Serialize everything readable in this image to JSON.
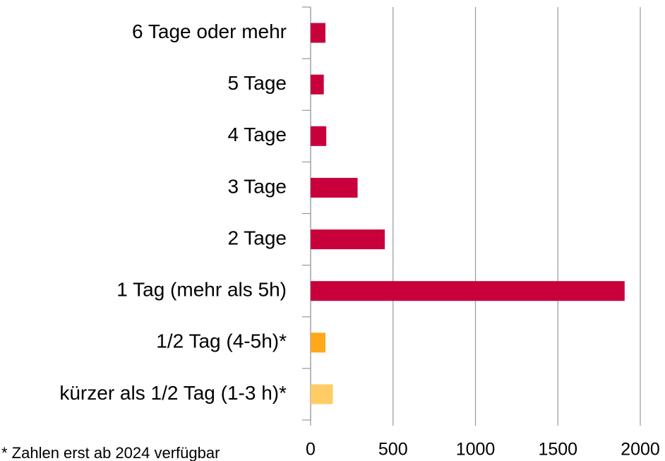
{
  "chart_data": {
    "type": "bar",
    "orientation": "horizontal",
    "categories": [
      "6 Tage oder mehr",
      "5 Tage",
      "4 Tage",
      "3 Tage",
      "2 Tage",
      "1 Tag (mehr als 5h)",
      "1/2 Tag (4-5h)*",
      "kürzer als 1/2 Tag (1-3 h)*"
    ],
    "values": [
      90,
      80,
      95,
      285,
      450,
      1905,
      90,
      135
    ],
    "colors": [
      "#c8003c",
      "#c8003c",
      "#c8003c",
      "#c8003c",
      "#c8003c",
      "#c8003c",
      "#ffa81c",
      "#ffcc66"
    ],
    "xlim": [
      0,
      2000
    ],
    "xticks": [
      0,
      500,
      1000,
      1500,
      2000
    ],
    "grid": true,
    "footnote": "* Zahlen erst ab 2024 verfügbar"
  }
}
